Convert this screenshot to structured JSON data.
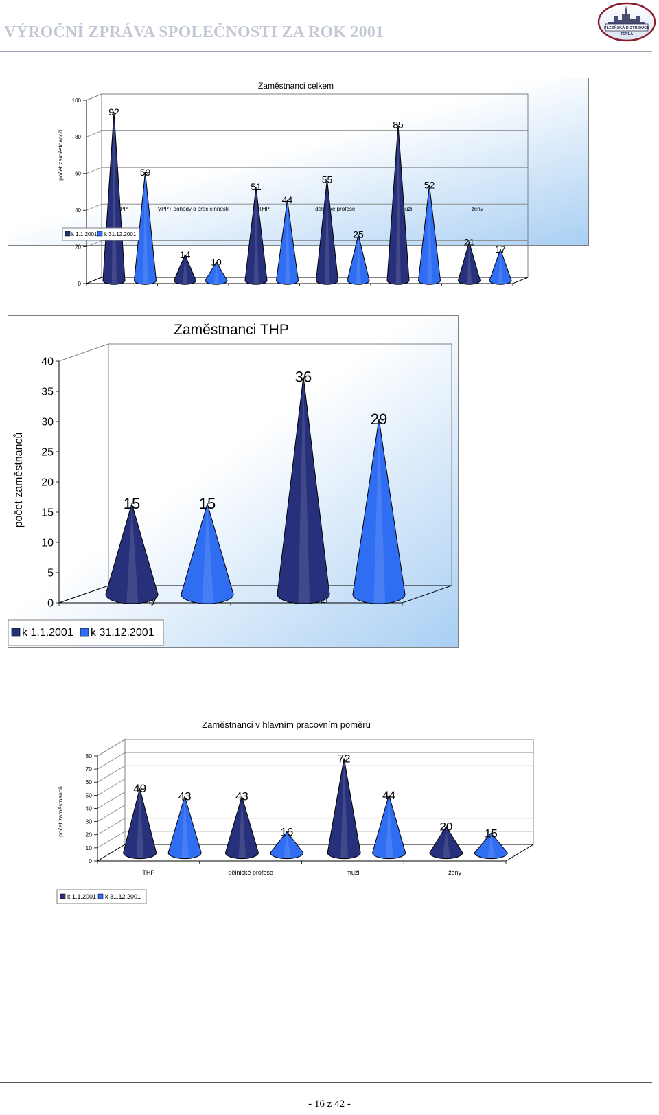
{
  "document": {
    "title": "VÝROČNÍ ZPRÁVA SPOLEČNOSTI ZA ROK 2001",
    "logo_text": [
      "PLZEŇSKÁ DISTRIBUCE",
      "TEPLA"
    ],
    "page_number": "- 16 z 42 -"
  },
  "colors": {
    "series_1": "#27307a",
    "series_2": "#2f6df2",
    "background_gradient_light": "#ffffff",
    "background_gradient_blue": "#a9cff3",
    "title_gray": "#c3c9d4"
  },
  "chart_data": [
    {
      "type": "bar",
      "shape": "cone-3d",
      "title": "Zaměstnanci celkem",
      "ylabel": "počet zaměstnanců",
      "xlabel": "",
      "ylim": [
        0,
        100
      ],
      "yticks": [
        0,
        20,
        40,
        60,
        80,
        100
      ],
      "categories": [
        "HPP",
        "VPP+ dohody o prac.činnosti",
        "THP",
        "dělnické profese",
        "muži",
        "ženy"
      ],
      "series": [
        {
          "name": "k 1.1.2001",
          "values": [
            92,
            14,
            51,
            55,
            85,
            21
          ]
        },
        {
          "name": "k 31.12.2001",
          "values": [
            59,
            10,
            44,
            25,
            52,
            17
          ]
        }
      ],
      "data_labels": true,
      "legend_position": "bottom-left",
      "grid": true
    },
    {
      "type": "bar",
      "shape": "cone-3d",
      "title": "Zaměstnanci THP",
      "ylabel": "počet zaměstnanců",
      "xlabel": "",
      "ylim": [
        0,
        40
      ],
      "yticks": [
        0,
        5,
        10,
        15,
        20,
        25,
        30,
        35,
        40
      ],
      "categories": [
        "ženy",
        "muži"
      ],
      "series": [
        {
          "name": "k 1.1.2001",
          "values": [
            15,
            36
          ]
        },
        {
          "name": "k 31.12.2001",
          "values": [
            15,
            29
          ]
        }
      ],
      "data_labels": true,
      "legend_position": "bottom-left",
      "grid": false
    },
    {
      "type": "bar",
      "shape": "cone-3d",
      "title": "Zaměstnanci v hlavním pracovním poměru",
      "ylabel": "počet zaměstnanců",
      "xlabel": "",
      "ylim": [
        0,
        80
      ],
      "yticks": [
        0,
        10,
        20,
        30,
        40,
        50,
        60,
        70,
        80
      ],
      "categories": [
        "THP",
        "dělnické profese",
        "muži",
        "ženy"
      ],
      "series": [
        {
          "name": "k 1.1.2001",
          "values": [
            49,
            43,
            72,
            20
          ]
        },
        {
          "name": "k 31.12.2001",
          "values": [
            43,
            16,
            44,
            15
          ]
        }
      ],
      "data_labels": true,
      "legend_position": "bottom-left",
      "grid": true
    }
  ]
}
